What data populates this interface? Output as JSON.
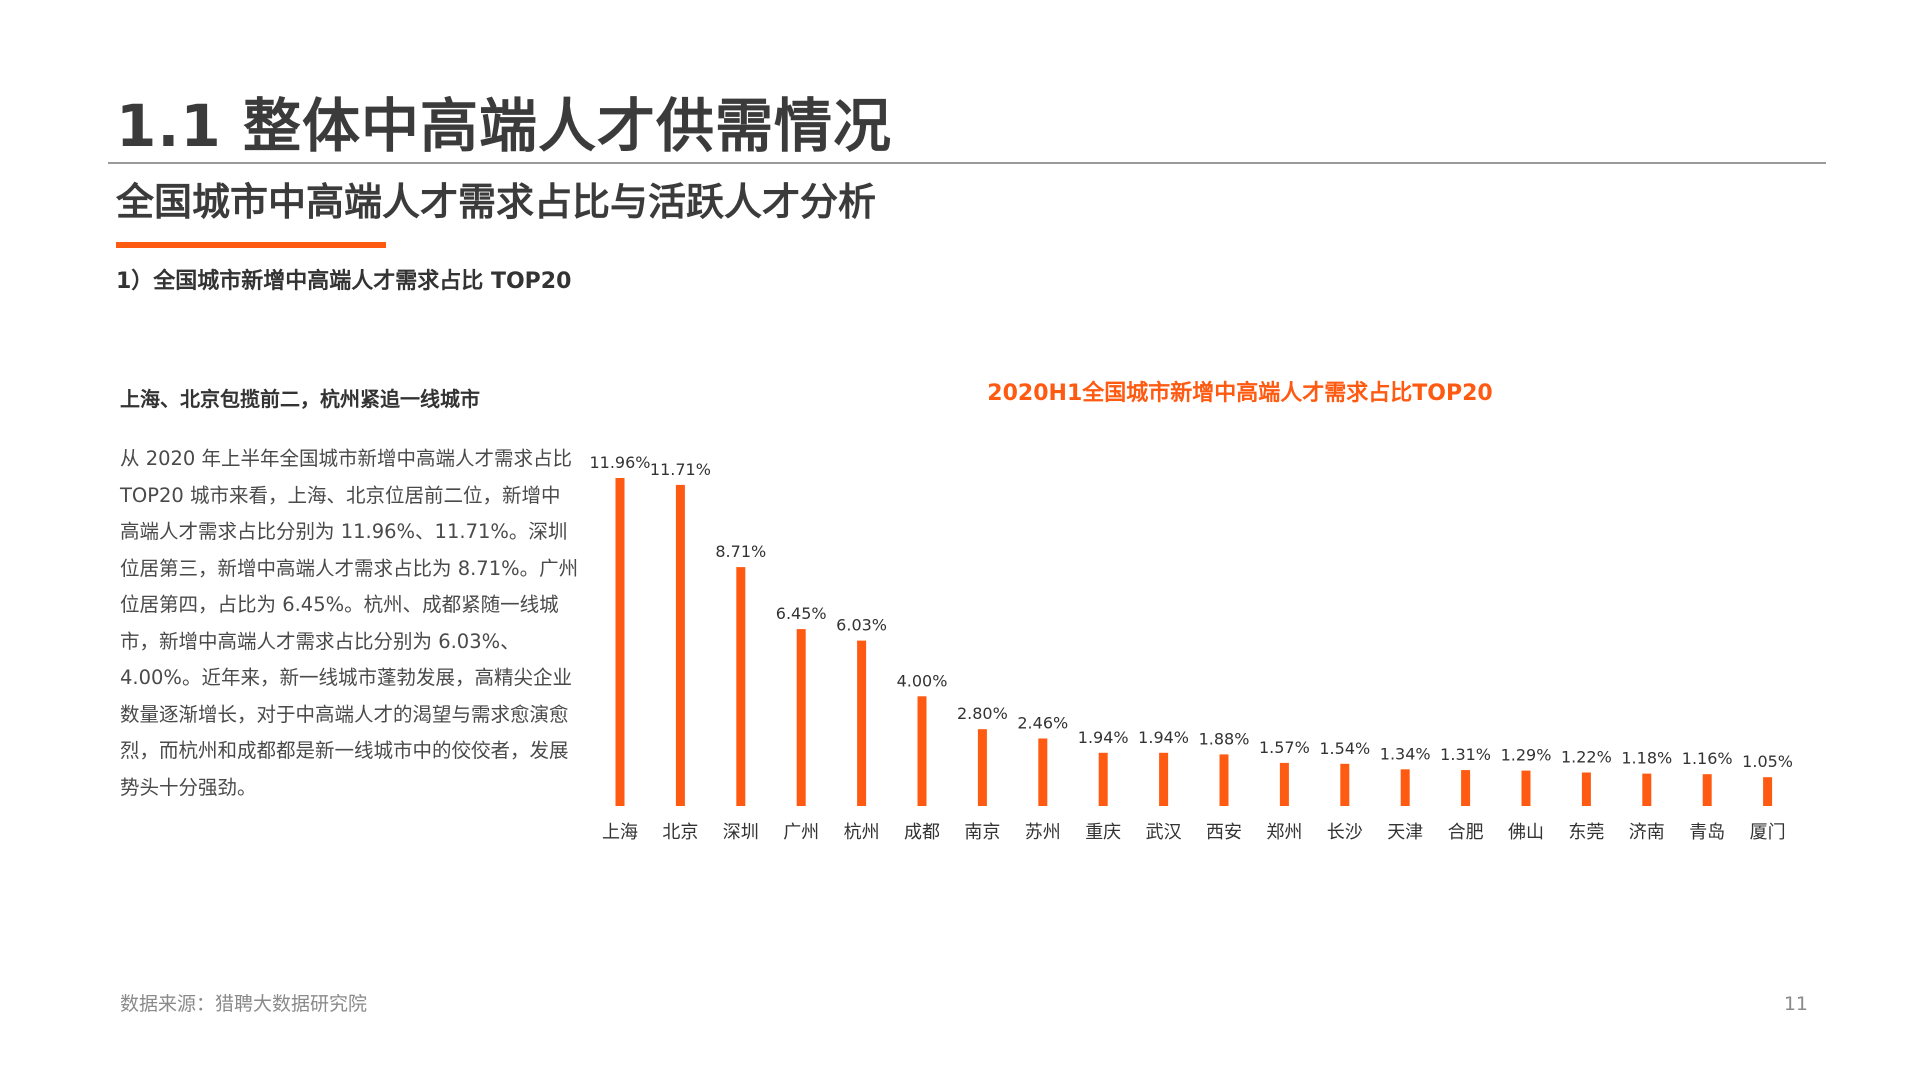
{
  "page_title": "1.1 整体中高端人才供需情况",
  "subtitle": "全国城市中高端人才需求占比与活跃人才分析",
  "section_heading": "1）全国城市新增中高端人才需求占比 TOP20",
  "text_panel": {
    "heading": "上海、北京包揽前二，杭州紧追一线城市",
    "body": "从 2020 年上半年全国城市新增中高端人才需求占比 TOP20 城市来看，上海、北京位居前二位，新增中高端人才需求占比分别为 11.96%、11.71%。深圳位居第三，新增中高端人才需求占比为 8.71%。广州位居第四，占比为 6.45%。杭州、成都紧随一线城市，新增中高端人才需求占比分别为 6.03%、4.00%。近年来，新一线城市蓬勃发展，高精尖企业数量逐渐增长，对于中高端人才的渴望与需求愈演愈烈，而杭州和成都都是新一线城市中的佼佼者，发展势头十分强劲。"
  },
  "footer": {
    "source": "数据来源：猎聘大数据研究院",
    "page_number": "11"
  },
  "colors": {
    "accent": "#ff5a12",
    "bar": "#ff5a12",
    "title_text": "#3b3b3b"
  },
  "chart_data": {
    "type": "bar",
    "title": "2020H1全国城市新增中高端人才需求占比TOP20",
    "xlabel": "",
    "ylabel": "",
    "categories": [
      "上海",
      "北京",
      "深圳",
      "广州",
      "杭州",
      "成都",
      "南京",
      "苏州",
      "重庆",
      "武汉",
      "西安",
      "郑州",
      "长沙",
      "天津",
      "合肥",
      "佛山",
      "东莞",
      "济南",
      "青岛",
      "厦门"
    ],
    "values": [
      11.96,
      11.71,
      8.71,
      6.45,
      6.03,
      4.0,
      2.8,
      2.46,
      1.94,
      1.94,
      1.88,
      1.57,
      1.54,
      1.34,
      1.31,
      1.29,
      1.22,
      1.18,
      1.16,
      1.05
    ],
    "value_labels": [
      "11.96%",
      "11.71%",
      "8.71%",
      "6.45%",
      "6.03%",
      "4.00%",
      "2.80%",
      "2.46%",
      "1.94%",
      "1.94%",
      "1.88%",
      "1.57%",
      "1.54%",
      "1.34%",
      "1.31%",
      "1.29%",
      "1.22%",
      "1.18%",
      "1.16%",
      "1.05%"
    ],
    "unit": "%",
    "ylim": [
      0,
      11.96
    ],
    "grid": false,
    "legend": "none",
    "y_axis_visible": false
  }
}
